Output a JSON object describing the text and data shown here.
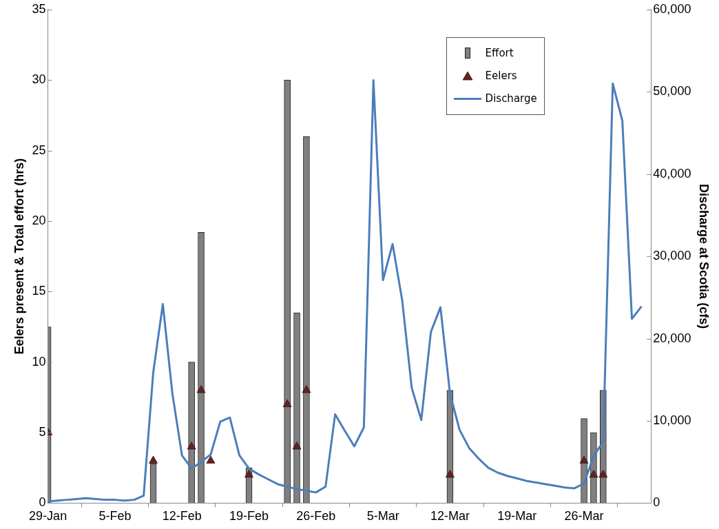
{
  "chart_data": {
    "type": "bar",
    "ylabel": "Eelers present & Total effort (hrs)",
    "y2label": "Discharge at Scotia (cfs)",
    "xlim": [
      "--01-29",
      "--04-02"
    ],
    "xticks": [
      {
        "value": "--01-29",
        "label": "29-Jan"
      },
      {
        "value": "--02-05",
        "label": "5-Feb"
      },
      {
        "value": "--02-12",
        "label": "12-Feb"
      },
      {
        "value": "--02-19",
        "label": "19-Feb"
      },
      {
        "value": "--02-26",
        "label": "26-Feb"
      },
      {
        "value": "--03-05",
        "label": "5-Mar"
      },
      {
        "value": "--03-12",
        "label": "12-Mar"
      },
      {
        "value": "--03-19",
        "label": "19-Mar"
      },
      {
        "value": "--03-26",
        "label": "26-Mar"
      }
    ],
    "ylim": [
      0,
      35
    ],
    "yticks": [
      0,
      5,
      10,
      15,
      20,
      25,
      30,
      35
    ],
    "y2lim": [
      0,
      60000
    ],
    "y2ticks": [
      0,
      {
        "value": 10000,
        "label": "10,000"
      },
      {
        "value": 20000,
        "label": "20,000"
      },
      {
        "value": 30000,
        "label": "30,000"
      },
      {
        "value": 40000,
        "label": "40,000"
      },
      {
        "value": 50000,
        "label": "50,000"
      },
      {
        "value": 60000,
        "label": "60,000"
      }
    ],
    "grid": false,
    "legend": "top right",
    "series": [
      {
        "name": "Effort",
        "color": "#808080",
        "x": [
          "--01-29",
          "--02-09",
          "--02-13",
          "--02-14",
          "--02-19",
          "--02-23",
          "--02-24",
          "--02-25",
          "--03-12",
          "--03-26",
          "--03-27",
          "--03-28"
        ],
        "values": [
          12.5,
          2.8,
          10,
          19.2,
          2.5,
          30,
          13.5,
          26,
          8,
          6,
          5,
          8
        ]
      },
      {
        "name": "Eelers",
        "type": "scatter",
        "marker": "triangle",
        "color": "#6b1f1f",
        "x": [
          "--01-29",
          "--02-09",
          "--02-13",
          "--02-14",
          "--02-15",
          "--02-19",
          "--02-23",
          "--02-24",
          "--02-25",
          "--03-12",
          "--03-26",
          "--03-27",
          "--03-28"
        ],
        "values": [
          5,
          3,
          4,
          8,
          3,
          2,
          7,
          4,
          8,
          2,
          3,
          2,
          2
        ]
      },
      {
        "name": "Discharge",
        "type": "line",
        "axis": "y2",
        "color": "#4a7ebb",
        "x": [
          "--01-29",
          "--01-30",
          "--01-31",
          "--02-01",
          "--02-02",
          "--02-03",
          "--02-04",
          "--02-05",
          "--02-06",
          "--02-07",
          "--02-08",
          "--02-09",
          "--02-10",
          "--02-11",
          "--02-12",
          "--02-13",
          "--02-14",
          "--02-15",
          "--02-16",
          "--02-17",
          "--02-18",
          "--02-19",
          "--02-20",
          "--02-21",
          "--02-22",
          "--02-23",
          "--02-24",
          "--02-25",
          "--02-26",
          "--02-27",
          "--02-28",
          "--03-01",
          "--03-02",
          "--03-03",
          "--03-04",
          "--03-05",
          "--03-06",
          "--03-07",
          "--03-08",
          "--03-09",
          "--03-10",
          "--03-11",
          "--03-12",
          "--03-13",
          "--03-14",
          "--03-15",
          "--03-16",
          "--03-17",
          "--03-18",
          "--03-19",
          "--03-20",
          "--03-21",
          "--03-22",
          "--03-23",
          "--03-24",
          "--03-25",
          "--03-26",
          "--03-27",
          "--03-28",
          "--03-29",
          "--03-30",
          "--03-31",
          "--04-01"
        ],
        "values": [
          200,
          300,
          400,
          500,
          600,
          500,
          400,
          400,
          300,
          400,
          900,
          15900,
          24200,
          13300,
          5800,
          4200,
          5000,
          5900,
          9900,
          10400,
          5800,
          4200,
          3500,
          2900,
          2300,
          2000,
          1700,
          1500,
          1300,
          2000,
          10800,
          8800,
          6900,
          9200,
          51400,
          27100,
          31500,
          24700,
          14000,
          10100,
          20800,
          23800,
          13300,
          8900,
          6700,
          5400,
          4300,
          3700,
          3300,
          3000,
          2700,
          2500,
          2300,
          2100,
          1900,
          1800,
          2400,
          5700,
          7500,
          51000,
          46500,
          22400,
          23900
        ]
      }
    ]
  }
}
